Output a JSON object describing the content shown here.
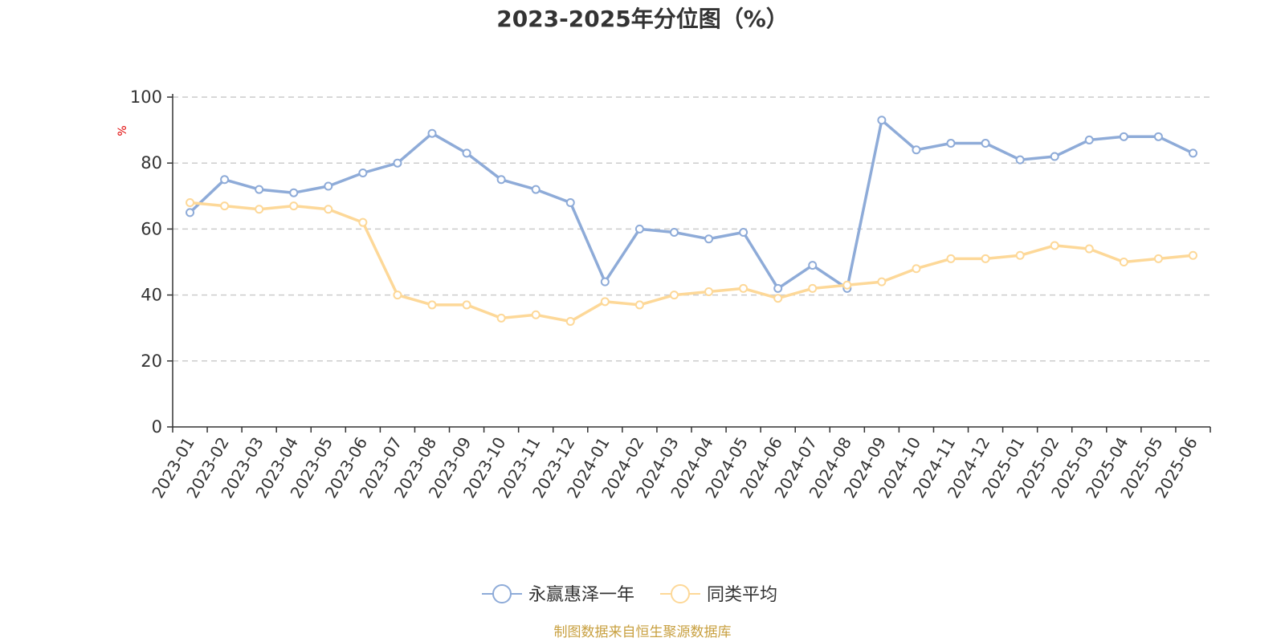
{
  "colors": {
    "series_1": "#8eabd8",
    "series_2": "#fdd898",
    "axis": "#333333",
    "grid": "#cccccc",
    "ylabel": "#e00000",
    "source": "#c8a040"
  },
  "chart_data": {
    "type": "line",
    "title": "2023-2025年分位图（%）",
    "ylabel": "%",
    "xlabel": "",
    "ylim": [
      0,
      100
    ],
    "yticks": [
      0,
      20,
      40,
      60,
      80,
      100
    ],
    "grid": true,
    "legend_position": "bottom-center",
    "categories": [
      "2023-01",
      "2023-02",
      "2023-03",
      "2023-04",
      "2023-05",
      "2023-06",
      "2023-07",
      "2023-08",
      "2023-09",
      "2023-10",
      "2023-11",
      "2023-12",
      "2024-01",
      "2024-02",
      "2024-03",
      "2024-04",
      "2024-05",
      "2024-06",
      "2024-07",
      "2024-08",
      "2024-09",
      "2024-10",
      "2024-11",
      "2024-12",
      "2025-01",
      "2025-02",
      "2025-03",
      "2025-04",
      "2025-05",
      "2025-06"
    ],
    "series": [
      {
        "name": "永赢惠泽一年",
        "values": [
          65,
          75,
          72,
          71,
          73,
          77,
          80,
          89,
          83,
          75,
          72,
          68,
          44,
          60,
          59,
          57,
          59,
          42,
          49,
          42,
          93,
          84,
          86,
          86,
          81,
          82,
          87,
          88,
          88,
          83
        ]
      },
      {
        "name": "同类平均",
        "values": [
          68,
          67,
          66,
          67,
          66,
          62,
          40,
          37,
          37,
          33,
          34,
          32,
          38,
          37,
          40,
          41,
          42,
          39,
          42,
          43,
          44,
          48,
          51,
          51,
          52,
          55,
          54,
          50,
          51,
          52
        ]
      }
    ]
  },
  "source_text": "制图数据来自恒生聚源数据库"
}
